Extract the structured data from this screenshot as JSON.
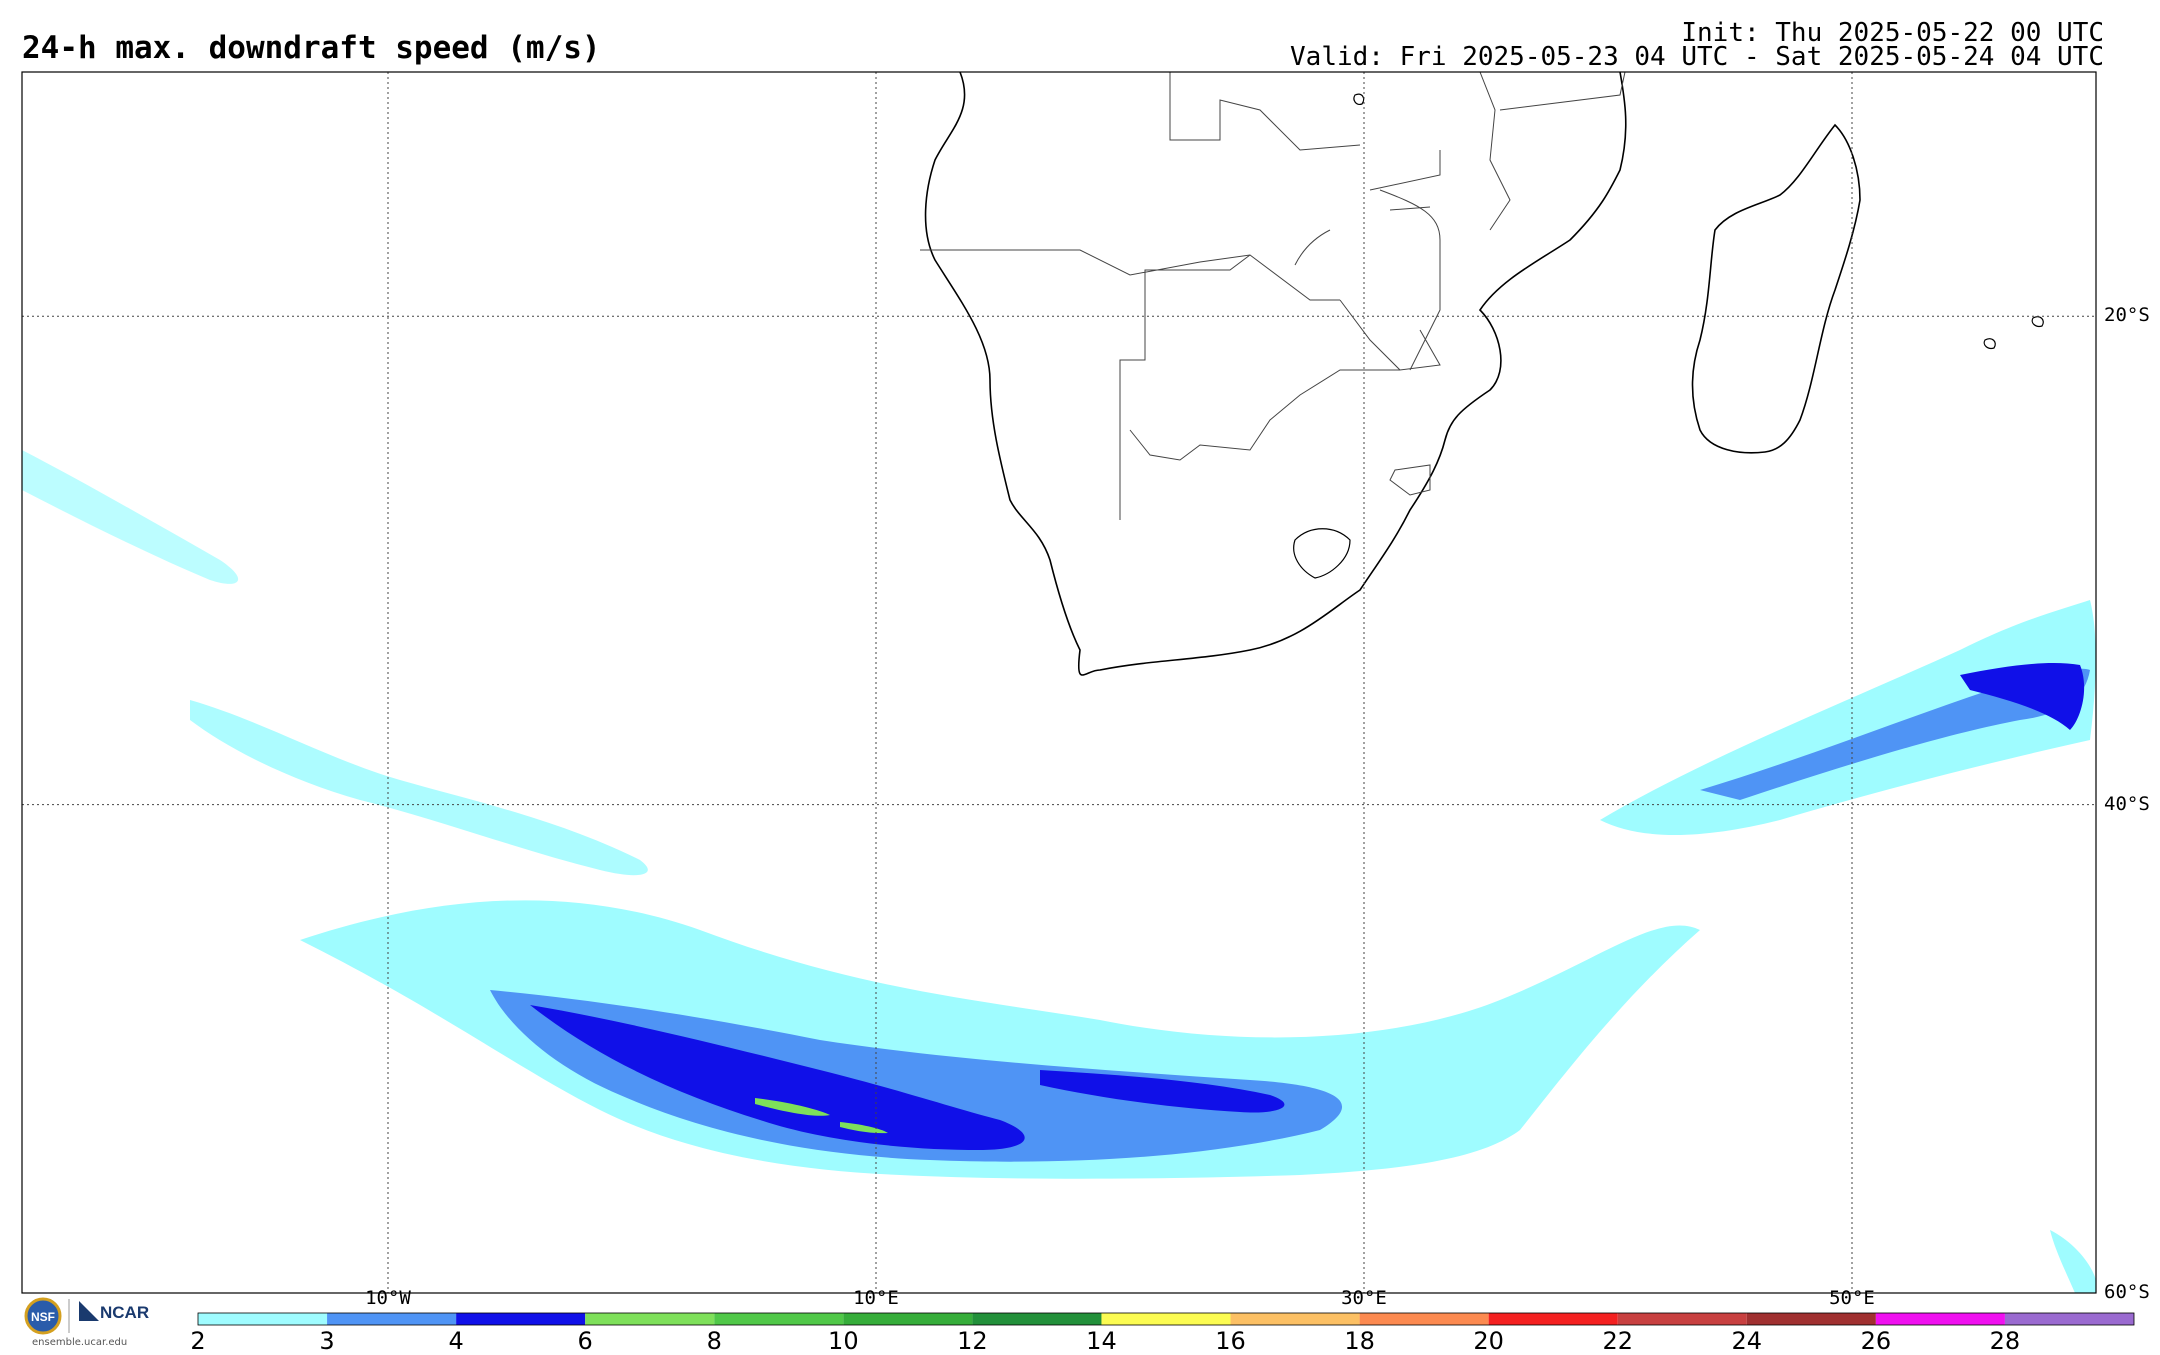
{
  "header": {
    "title": "24-h max. downdraft speed (m/s)",
    "init": "Init: Thu 2025-05-22 00 UTC",
    "valid": "Valid: Fri 2025-05-23 04 UTC - Sat 2025-05-24 04 UTC"
  },
  "map": {
    "projection": "equirectangular",
    "lon_range": [
      -25,
      60
    ],
    "lat_range": [
      -60,
      -10
    ],
    "lat_labels": [
      {
        "lat": -20,
        "text": "20°S"
      },
      {
        "lat": -40,
        "text": "40°S"
      },
      {
        "lat": -60,
        "text": "60°S"
      }
    ],
    "lon_labels": [
      {
        "lon": -10,
        "text": "10°W"
      },
      {
        "lon": 10,
        "text": "10°E"
      },
      {
        "lon": 30,
        "text": "30°E"
      },
      {
        "lon": 50,
        "text": "50°E"
      }
    ],
    "gridline_style": "dotted"
  },
  "colorbar": {
    "ticks": [
      "2",
      "3",
      "4",
      "6",
      "8",
      "10",
      "12",
      "14",
      "16",
      "18",
      "20",
      "22",
      "24",
      "26",
      "28"
    ],
    "colors": [
      "#9ffcff",
      "#4f94f5",
      "#1010e8",
      "#7ee05a",
      "#50c848",
      "#36ad3a",
      "#22903a",
      "#fcfc52",
      "#fcc064",
      "#fc8a50",
      "#f42020",
      "#c84040",
      "#a03030",
      "#f010f0",
      "#9a6ad0"
    ]
  },
  "logo": {
    "org": "NCAR",
    "site": "ensemble.ucar.edu"
  }
}
